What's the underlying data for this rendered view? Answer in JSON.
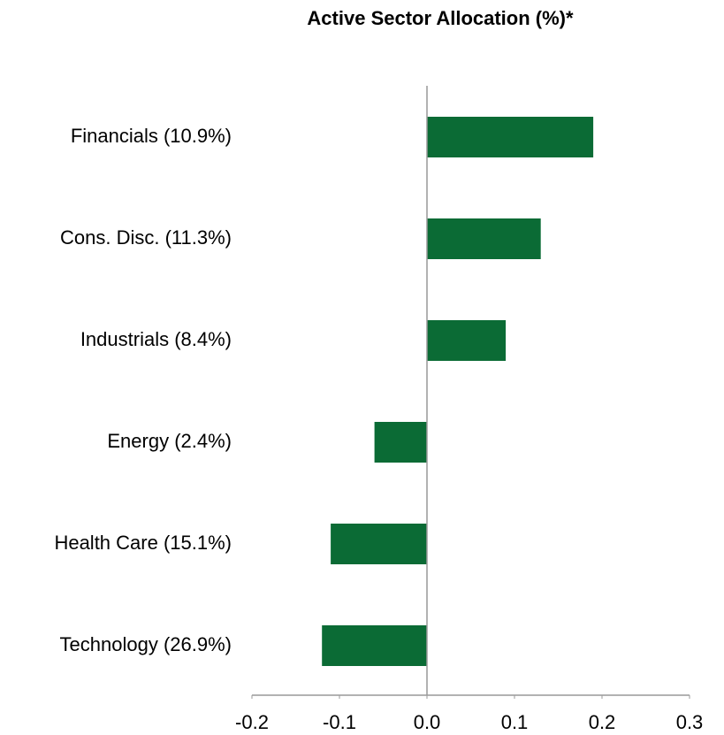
{
  "chart_data": {
    "type": "bar",
    "orientation": "horizontal",
    "title": "Active Sector Allocation (%)*",
    "categories": [
      "Financials (10.9%)",
      "Cons. Disc. (11.3%)",
      "Industrials (8.4%)",
      "Energy (2.4%)",
      "Health Care (15.1%)",
      "Technology (26.9%)"
    ],
    "values": [
      0.19,
      0.13,
      0.09,
      -0.06,
      -0.11,
      -0.12
    ],
    "color": "#0b6b35",
    "xlim": [
      -0.2,
      0.3
    ],
    "xticks": [
      -0.2,
      -0.1,
      {
        "value": 0,
        "label": "0.0"
      },
      0.1,
      0.2,
      0.3
    ],
    "grid": false
  }
}
